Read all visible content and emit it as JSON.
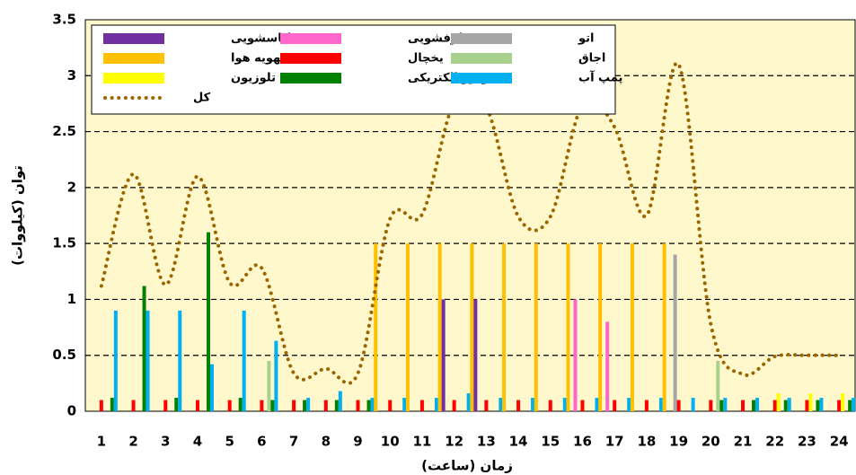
{
  "chart_data": {
    "type": "bar",
    "x_label": "زمان (ساعت)",
    "y_label": "توان (کیلووات)",
    "categories": [
      "1",
      "2",
      "3",
      "4",
      "5",
      "6",
      "7",
      "8",
      "9",
      "10",
      "11",
      "12",
      "13",
      "14",
      "15",
      "16",
      "17",
      "18",
      "19",
      "20",
      "21",
      "22",
      "23",
      "24"
    ],
    "ylim": [
      0,
      3.5
    ],
    "yticks": [
      0,
      0.5,
      1,
      1.5,
      2,
      2.5,
      3,
      3.5
    ],
    "grid": true,
    "series": [
      {
        "name": "لباسشویی",
        "color": "#7030a0",
        "values": [
          0,
          0,
          0,
          0,
          0,
          0,
          0,
          0,
          0,
          0,
          0,
          1,
          1,
          0,
          0,
          0,
          0,
          0,
          0,
          0,
          0,
          0,
          0,
          0
        ]
      },
      {
        "name": "ظرفشویی",
        "color": "#ff66cc",
        "values": [
          0,
          0,
          0,
          0,
          0,
          0,
          0,
          0,
          0,
          0,
          0,
          0,
          0,
          0,
          0,
          1,
          0.8,
          0,
          0,
          0,
          0,
          0,
          0,
          0
        ]
      },
      {
        "name": "اتو",
        "color": "#a6a6a6",
        "values": [
          0,
          0,
          0,
          0,
          0,
          0,
          0,
          0,
          0,
          0,
          0,
          0,
          0,
          0,
          0,
          0,
          0,
          0,
          1.4,
          0,
          0,
          0,
          0,
          0
        ]
      },
      {
        "name": "تهویه هوا",
        "color": "#ffc000",
        "values": [
          0,
          0,
          0,
          0,
          0,
          0,
          0,
          0,
          0,
          1.5,
          1.5,
          1.5,
          1.5,
          1.5,
          1.5,
          1.5,
          1.5,
          1.5,
          1.5,
          0,
          0,
          0,
          0,
          0
        ]
      },
      {
        "name": "یخچال",
        "color": "#ff0000",
        "values": [
          0.1,
          0.1,
          0.1,
          0.1,
          0.1,
          0.1,
          0.1,
          0.1,
          0.1,
          0.1,
          0.1,
          0.1,
          0.1,
          0.1,
          0.1,
          0.1,
          0.1,
          0.1,
          0.1,
          0.1,
          0.1,
          0.1,
          0.1,
          0.1
        ]
      },
      {
        "name": "اجاق",
        "color": "#a9d18e",
        "values": [
          0,
          0,
          0,
          0,
          0,
          0.45,
          0,
          0,
          0,
          0,
          0,
          0,
          0,
          0,
          0,
          0,
          0,
          0,
          0,
          0.45,
          0,
          0,
          0,
          0
        ]
      },
      {
        "name": "تلوزیون",
        "color": "#ffff00",
        "values": [
          0,
          0,
          0,
          0,
          0,
          0,
          0,
          0,
          0,
          0,
          0,
          0,
          0,
          0,
          0,
          0,
          0,
          0,
          0,
          0,
          0,
          0.16,
          0.16,
          0.16
        ]
      },
      {
        "name": "خودرو الکتریکی",
        "color": "#008000",
        "values": [
          0.12,
          1.12,
          0.12,
          1.6,
          0.12,
          0.1,
          0.1,
          0.1,
          0.1,
          0,
          0,
          0,
          0,
          0,
          0,
          0,
          0,
          0,
          0,
          0.1,
          0.1,
          0.1,
          0.1,
          0.1
        ]
      },
      {
        "name": "پمپ آب",
        "color": "#00b0f0",
        "values": [
          0.9,
          0.9,
          0.9,
          0.42,
          0.9,
          0.63,
          0.12,
          0.18,
          0.12,
          0.12,
          0.12,
          0.16,
          0.12,
          0.12,
          0.12,
          0.12,
          0.12,
          0.12,
          0.12,
          0.12,
          0.12,
          0.12,
          0.12,
          0.12
        ]
      }
    ],
    "line_series": {
      "name": "کل",
      "color": "#9c6500",
      "values": [
        1.12,
        2.12,
        1.13,
        2.1,
        1.15,
        1.28,
        0.34,
        0.38,
        0.34,
        1.72,
        1.76,
        2.76,
        2.72,
        1.74,
        1.74,
        2.74,
        2.54,
        1.75,
        3.1,
        0.78,
        0.33,
        0.49,
        0.5,
        0.5
      ]
    }
  }
}
